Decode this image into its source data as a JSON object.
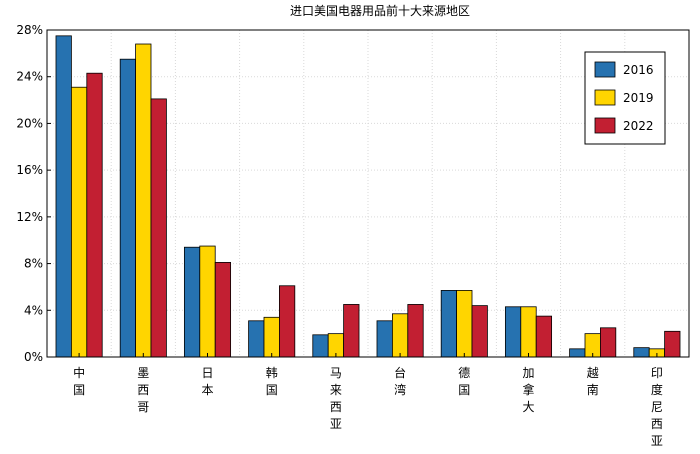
{
  "chart_data": {
    "type": "bar",
    "title": "进口美国电器用品前十大来源地区",
    "xlabel": "",
    "ylabel": "",
    "categories": [
      "中国",
      "墨西哥",
      "日本",
      "韩国",
      "马来西亚",
      "台湾",
      "德国",
      "加拿大",
      "越南",
      "印度尼西亚"
    ],
    "series": [
      {
        "name": "2016",
        "color": "#2672b0",
        "values": [
          27.5,
          25.5,
          9.4,
          3.1,
          1.9,
          3.1,
          5.7,
          4.3,
          0.7,
          0.8
        ]
      },
      {
        "name": "2019",
        "color": "#ffd500",
        "values": [
          23.1,
          26.8,
          9.5,
          3.4,
          2.0,
          3.7,
          5.7,
          4.3,
          2.0,
          0.7
        ]
      },
      {
        "name": "2022",
        "color": "#c21f32",
        "values": [
          24.3,
          22.1,
          8.1,
          6.1,
          4.5,
          4.5,
          4.4,
          3.5,
          2.5,
          2.2
        ]
      }
    ],
    "ylim": [
      0,
      28
    ],
    "yticks": [
      0,
      4,
      8,
      12,
      16,
      20,
      24,
      28
    ],
    "ytick_labels": [
      "0%",
      "4%",
      "8%",
      "12%",
      "16%",
      "20%",
      "24%",
      "28%"
    ],
    "grid": true,
    "legend_position": "top-right"
  }
}
